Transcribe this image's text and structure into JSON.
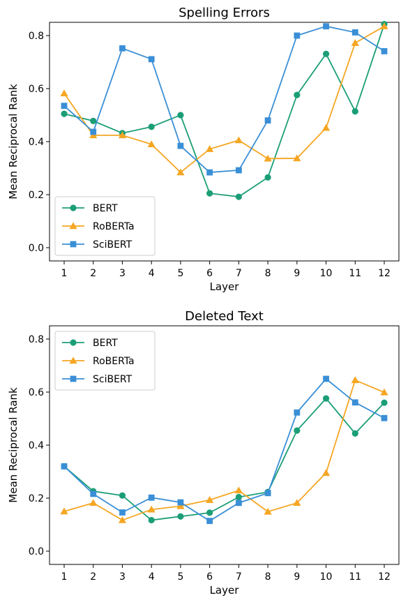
{
  "chart_data": [
    {
      "type": "line",
      "title": "Spelling Errors",
      "xlabel": "Layer",
      "ylabel": "Mean Reciprocal Rank",
      "categories": [
        "1",
        "2",
        "3",
        "4",
        "5",
        "6",
        "7",
        "8",
        "9",
        "10",
        "11",
        "12"
      ],
      "ylim": [
        -0.05,
        0.85
      ],
      "yticks": [
        "0.0",
        "0.2",
        "0.4",
        "0.6",
        "0.8"
      ],
      "legend": "lower-left",
      "series": [
        {
          "name": "BERT",
          "color": "#1b9e77",
          "marker": "circle",
          "values": [
            0.505,
            0.478,
            0.432,
            0.456,
            0.5,
            0.205,
            0.192,
            0.265,
            0.576,
            0.731,
            0.514,
            0.843
          ]
        },
        {
          "name": "RoBERTa",
          "color": "#f5a623",
          "marker": "triangle",
          "values": [
            0.582,
            0.424,
            0.424,
            0.39,
            0.284,
            0.372,
            0.405,
            0.336,
            0.337,
            0.452,
            0.772,
            0.835
          ]
        },
        {
          "name": "SciBERT",
          "color": "#3a8fd6",
          "marker": "square",
          "values": [
            0.535,
            0.437,
            0.752,
            0.711,
            0.384,
            0.284,
            0.292,
            0.48,
            0.8,
            0.835,
            0.812,
            0.741
          ]
        }
      ]
    },
    {
      "type": "line",
      "title": "Deleted Text",
      "xlabel": "Layer",
      "ylabel": "Mean Reciprocal Rank",
      "categories": [
        "1",
        "2",
        "3",
        "4",
        "5",
        "6",
        "7",
        "8",
        "9",
        "10",
        "11",
        "12"
      ],
      "ylim": [
        -0.05,
        0.85
      ],
      "yticks": [
        "0.0",
        "0.2",
        "0.4",
        "0.6",
        "0.8"
      ],
      "legend": "upper-left",
      "series": [
        {
          "name": "BERT",
          "color": "#1b9e77",
          "marker": "circle",
          "values": [
            0.32,
            0.226,
            0.21,
            0.117,
            0.131,
            0.145,
            0.204,
            0.223,
            0.455,
            0.576,
            0.444,
            0.56
          ]
        },
        {
          "name": "RoBERTa",
          "color": "#f5a623",
          "marker": "triangle",
          "values": [
            0.15,
            0.182,
            0.117,
            0.157,
            0.17,
            0.193,
            0.229,
            0.149,
            0.182,
            0.295,
            0.645,
            0.599
          ]
        },
        {
          "name": "SciBERT",
          "color": "#3a8fd6",
          "marker": "square",
          "values": [
            0.32,
            0.216,
            0.146,
            0.202,
            0.184,
            0.114,
            0.182,
            0.219,
            0.523,
            0.65,
            0.561,
            0.502
          ]
        }
      ]
    }
  ]
}
